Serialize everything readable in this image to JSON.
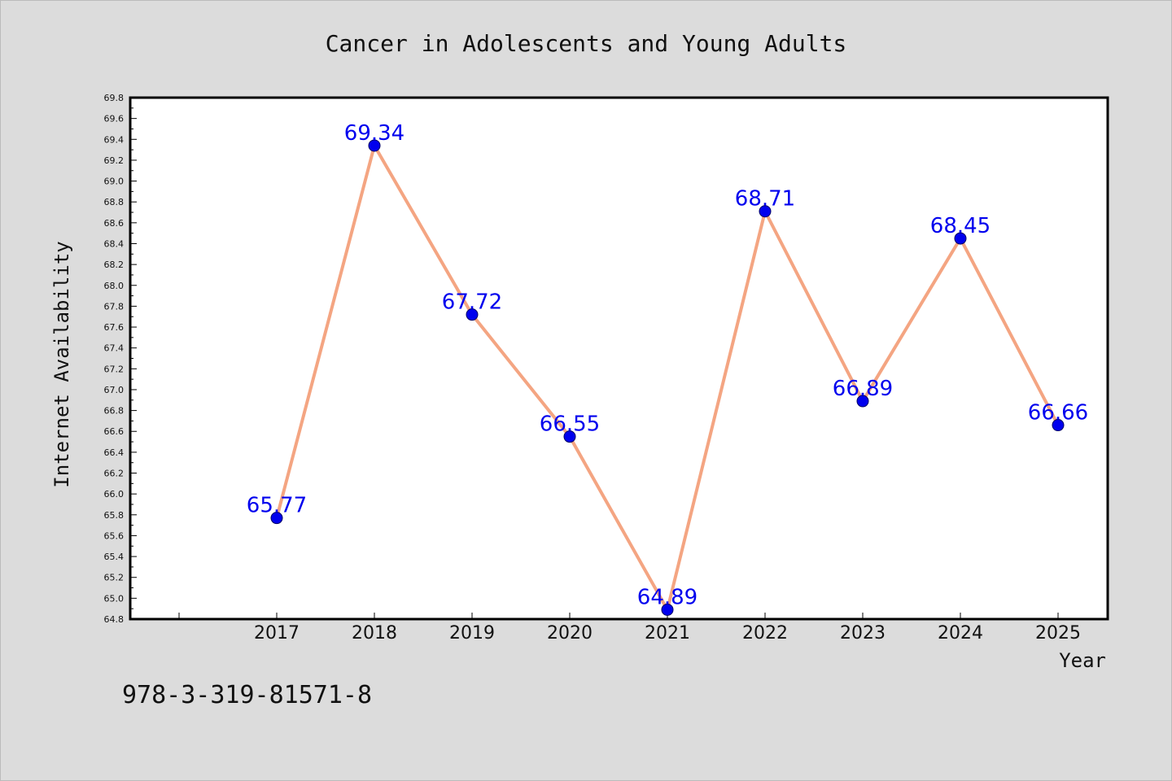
{
  "chart_data": {
    "type": "line",
    "title": "Cancer in Adolescents and Young Adults",
    "xlabel": "Year",
    "ylabel": "Internet Availability",
    "categories": [
      "2017",
      "2018",
      "2019",
      "2020",
      "2021",
      "2022",
      "2023",
      "2024",
      "2025"
    ],
    "series": [
      {
        "values": [
          65.77,
          69.34,
          67.72,
          66.55,
          64.89,
          68.71,
          66.89,
          68.45,
          66.66
        ],
        "data_labels": [
          "65.77",
          "69.34",
          "67.72",
          "66.55",
          "64.89",
          "68.71",
          "66.89",
          "68.45",
          "66.66"
        ]
      }
    ],
    "ylim": [
      64.8,
      69.8
    ],
    "yticks": [
      "64.8",
      "65.0",
      "65.2",
      "65.4",
      "65.6",
      "65.8",
      "66.0",
      "66.2",
      "66.4",
      "66.6",
      "66.8",
      "67.0",
      "67.2",
      "67.4",
      "67.6",
      "67.8",
      "68.0",
      "68.2",
      "68.4",
      "68.6",
      "68.8",
      "69.0",
      "69.2",
      "69.4",
      "69.6",
      "69.8"
    ],
    "grid": false,
    "legend": "none",
    "colors": {
      "line": "#f4a582",
      "marker": "#0000ee",
      "label": "#0000ee",
      "background": "#dcdcdc",
      "plot_background": "#ffffff"
    }
  },
  "footer": {
    "isbn": "978-3-319-81571-8"
  }
}
